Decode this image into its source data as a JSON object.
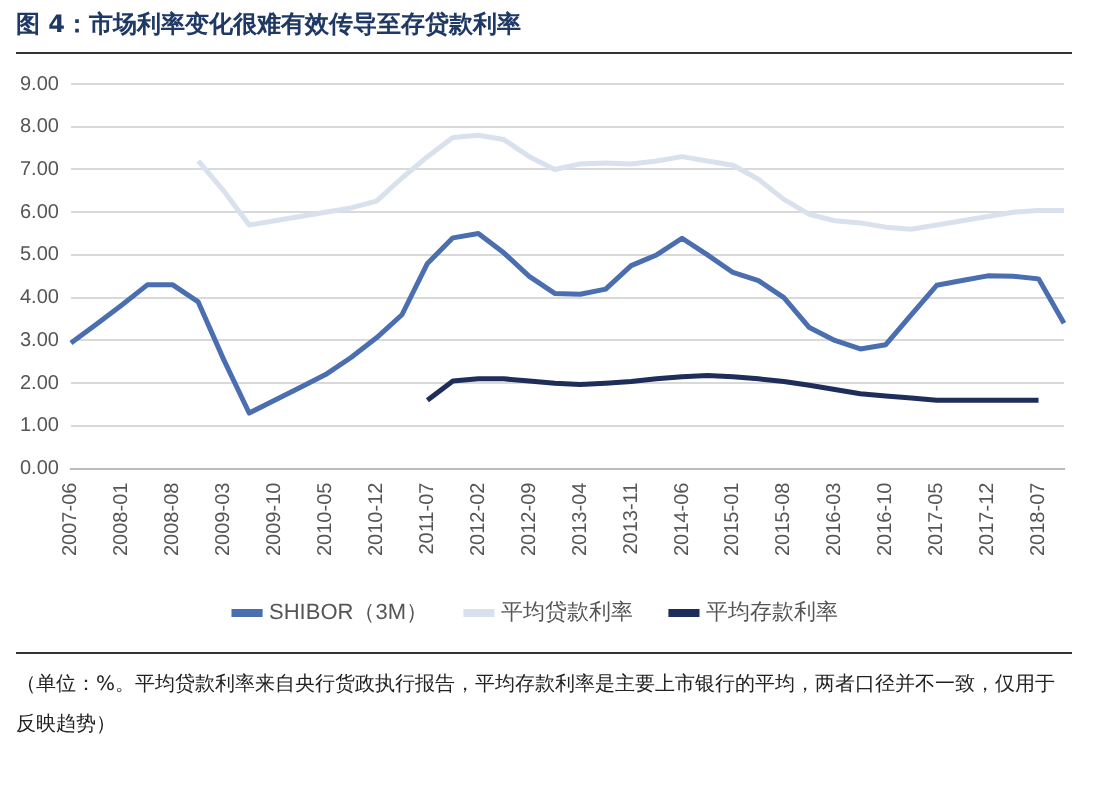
{
  "chart_data": {
    "type": "line",
    "title": "图 4：市场利率变化很难有效传导至存贷款利率",
    "categories": [
      "2007-06",
      null,
      "2008-01",
      null,
      "2008-08",
      null,
      "2009-03",
      null,
      "2009-10",
      null,
      "2010-05",
      null,
      "2010-12",
      null,
      "2011-07",
      null,
      "2012-02",
      null,
      "2012-09",
      null,
      "2013-04",
      null,
      "2013-11",
      null,
      "2014-06",
      null,
      "2015-01",
      null,
      "2015-08",
      null,
      "2016-03",
      null,
      "2016-10",
      null,
      "2017-05",
      null,
      "2017-12",
      null,
      "2018-07",
      null
    ],
    "series": [
      {
        "name": "SHIBOR（3M）",
        "color": "#4a6eb0",
        "values": [
          2.94,
          3.38,
          3.83,
          4.3,
          4.3,
          3.9,
          2.55,
          1.3,
          1.6,
          1.9,
          2.2,
          2.6,
          3.06,
          3.6,
          4.8,
          5.4,
          5.5,
          5.05,
          4.5,
          4.1,
          4.08,
          4.2,
          4.75,
          5.0,
          5.39,
          5.0,
          4.59,
          4.4,
          4.0,
          3.3,
          3.0,
          2.8,
          2.9,
          3.6,
          4.29,
          4.4,
          4.51,
          4.5,
          4.44,
          3.4
        ]
      },
      {
        "name": "平均贷款利率",
        "color": "#d9e1ee",
        "values": [
          null,
          null,
          null,
          null,
          null,
          7.2,
          6.5,
          5.7,
          5.8,
          5.9,
          6.0,
          6.1,
          6.26,
          6.8,
          7.3,
          7.75,
          7.8,
          7.7,
          7.3,
          7.0,
          7.13,
          7.15,
          7.13,
          7.2,
          7.3,
          7.2,
          7.1,
          6.77,
          6.3,
          5.95,
          5.8,
          5.75,
          5.65,
          5.6,
          5.7,
          5.8,
          5.9,
          6.0,
          6.04,
          6.04
        ]
      },
      {
        "name": "平均存款利率",
        "color": "#1f2d5a",
        "values": [
          null,
          null,
          null,
          null,
          null,
          null,
          null,
          null,
          null,
          null,
          null,
          null,
          null,
          null,
          1.6,
          2.05,
          2.1,
          2.1,
          2.05,
          2.0,
          1.97,
          2.0,
          2.04,
          2.1,
          2.15,
          2.18,
          2.15,
          2.1,
          2.04,
          1.95,
          1.85,
          1.75,
          1.7,
          1.65,
          1.6,
          1.6,
          1.6,
          1.6,
          1.6,
          null
        ]
      }
    ],
    "ylim": [
      0,
      9
    ],
    "yticks": [
      {
        "value": 0,
        "label": "0.00"
      },
      {
        "value": 1,
        "label": "1.00"
      },
      {
        "value": 2,
        "label": "2.00"
      },
      {
        "value": 3,
        "label": "3.00"
      },
      {
        "value": 4,
        "label": "4.00"
      },
      {
        "value": 5,
        "label": "5.00"
      },
      {
        "value": 6,
        "label": "6.00"
      },
      {
        "value": 7,
        "label": "7.00"
      },
      {
        "value": 8,
        "label": "8.00"
      },
      {
        "value": 9,
        "label": "9.00"
      }
    ],
    "grid": "y",
    "legend": "bottom",
    "marker": "none",
    "line_style": "solid",
    "annotations": [
      "（单位：%。平均贷款利率来自央行货政执行报告，平均存款利率是主要上市银行的平均，两者口径并不一致，仅用于反映趋势）"
    ]
  }
}
